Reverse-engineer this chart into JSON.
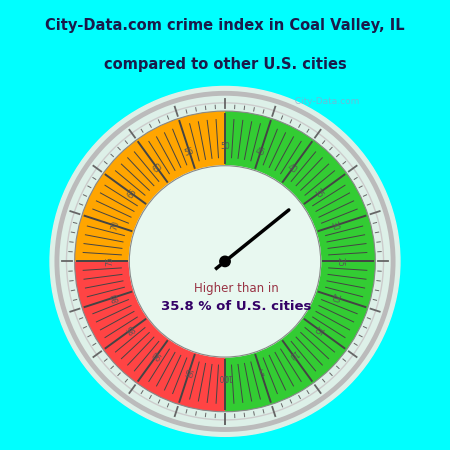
{
  "title_line1": "City-Data.com crime index in Coal Valley, IL",
  "title_line2": "compared to other U.S. cities",
  "title_bg_color": "#00FFFF",
  "chart_bg_color": "#D8F5E8",
  "inner_bg_color": "#E8F8F0",
  "green_color": "#33CC33",
  "orange_color": "#FFA500",
  "red_color": "#FF4444",
  "needle_value": 35.8,
  "label_text1": "Higher than in",
  "label_text2": "35.8 % of U.S. cities",
  "label_color1": "#993344",
  "label_color2": "#330066",
  "watermark": "  City-Data.com",
  "tick_color": "#555555",
  "tick_label_color": "#555555"
}
